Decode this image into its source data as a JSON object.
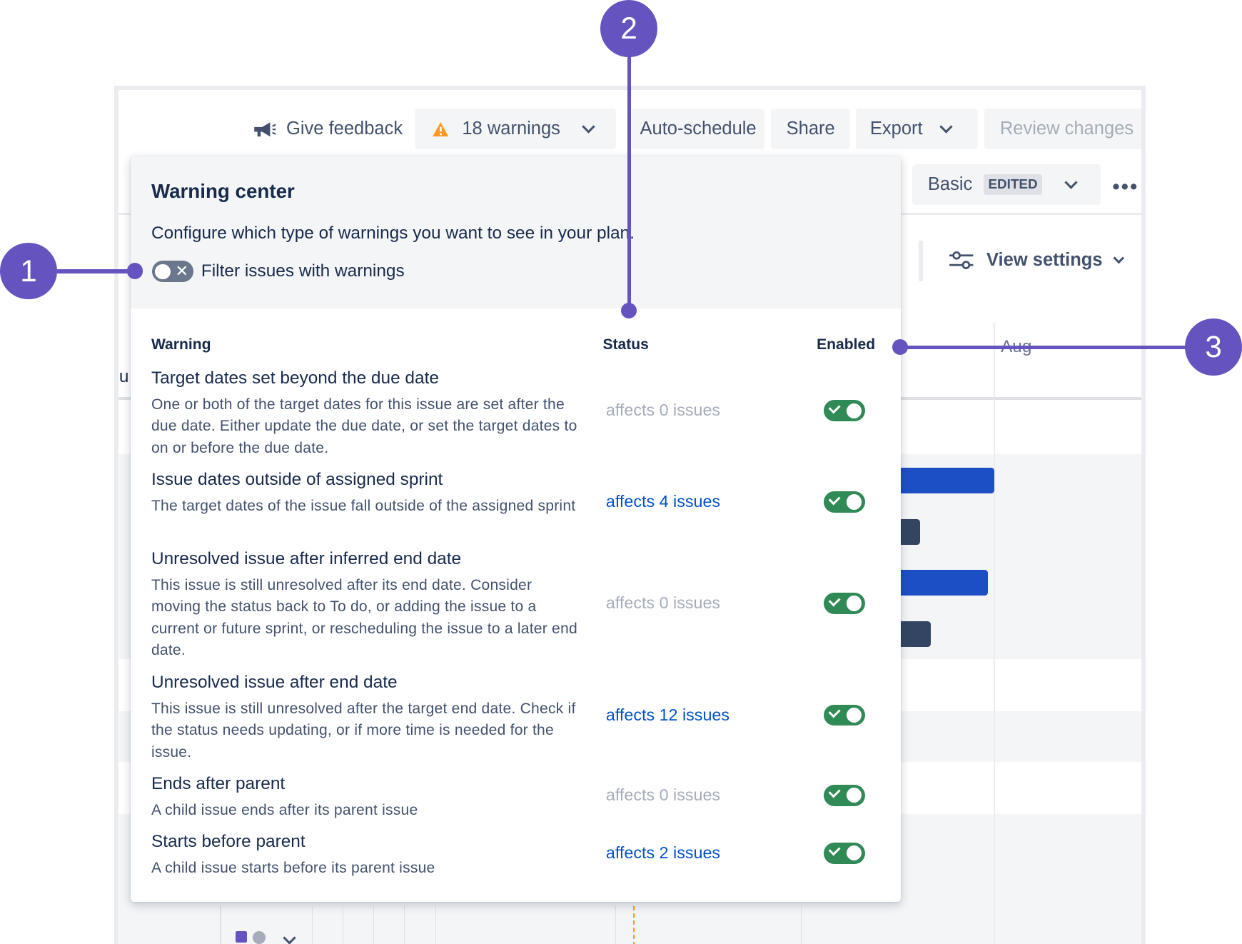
{
  "toolbar": {
    "give_feedback": "Give feedback",
    "warnings": "18 warnings",
    "auto_schedule": "Auto-schedule",
    "share": "Share",
    "export": "Export",
    "review_changes": "Review changes"
  },
  "subbar": {
    "view_name": "Basic",
    "view_badge": "EDITED",
    "view_settings": "View settings"
  },
  "timeline": {
    "month_label": "Aug",
    "left_fragment": "Ju"
  },
  "warning_center": {
    "title": "Warning center",
    "description": "Configure which type of warnings you want to see in your plan.",
    "filter_label": "Filter issues with warnings",
    "filter_enabled": false,
    "columns": {
      "warning": "Warning",
      "status": "Status",
      "enabled": "Enabled"
    },
    "warnings": [
      {
        "title": "Target dates set beyond the due date",
        "description": "One or both of the target dates for this issue are set after the due date. Either update the due date, or set the target dates to on or before the due date.",
        "status": "affects 0 issues",
        "enabled": true
      },
      {
        "title": "Issue dates outside of assigned sprint",
        "description": "The target dates of the issue fall outside of the assigned sprint",
        "status": "affects 4 issues",
        "enabled": true
      },
      {
        "title": "Unresolved issue after inferred end date",
        "description": "This issue is still unresolved after its end date. Consider moving the status back to To do, or adding the issue to a current or future sprint, or rescheduling the issue to a later end date.",
        "status": "affects 0 issues",
        "enabled": true
      },
      {
        "title": "Unresolved issue after end date",
        "description": "This issue is still unresolved after the target end date. Check if the status needs updating, or if more time is needed for the issue.",
        "status": "affects 12 issues",
        "enabled": true
      },
      {
        "title": "Ends after parent",
        "description": "A child issue ends after its parent issue",
        "status": "affects 0 issues",
        "enabled": true
      },
      {
        "title": "Starts before parent",
        "description": "A child issue starts before its parent issue",
        "status": "affects 2 issues",
        "enabled": true
      }
    ]
  },
  "callouts": [
    "1",
    "2",
    "3"
  ],
  "colors": {
    "callout": "#6554c0",
    "toggle_on": "#2f8a55",
    "link": "#0052cc",
    "bar_blue": "#1d4fc4",
    "bar_dark": "#344563",
    "warning_icon": "#ff991f"
  }
}
